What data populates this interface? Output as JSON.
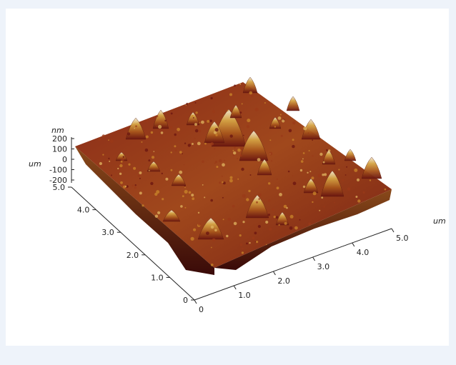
{
  "chart_data": {
    "type": "surface3d",
    "title": "",
    "x_axis": {
      "label": "um",
      "ticks": [
        "0",
        "1.0",
        "2.0",
        "3.0",
        "4.0",
        "5.0"
      ],
      "range": [
        0,
        5
      ]
    },
    "y_axis": {
      "label": "um",
      "ticks": [
        "0",
        "1.0",
        "2.0",
        "3.0",
        "4.0",
        "5.0"
      ],
      "range": [
        0,
        5
      ]
    },
    "z_axis": {
      "label": "nm",
      "ticks": [
        "-200",
        "-100",
        "0",
        "100",
        "200"
      ],
      "range": [
        -200,
        250
      ]
    },
    "grid": false,
    "colormap": [
      "#4a0c0c",
      "#7a1a12",
      "#a5501a",
      "#c88a28",
      "#e2c070",
      "#f4f1e6"
    ]
  }
}
